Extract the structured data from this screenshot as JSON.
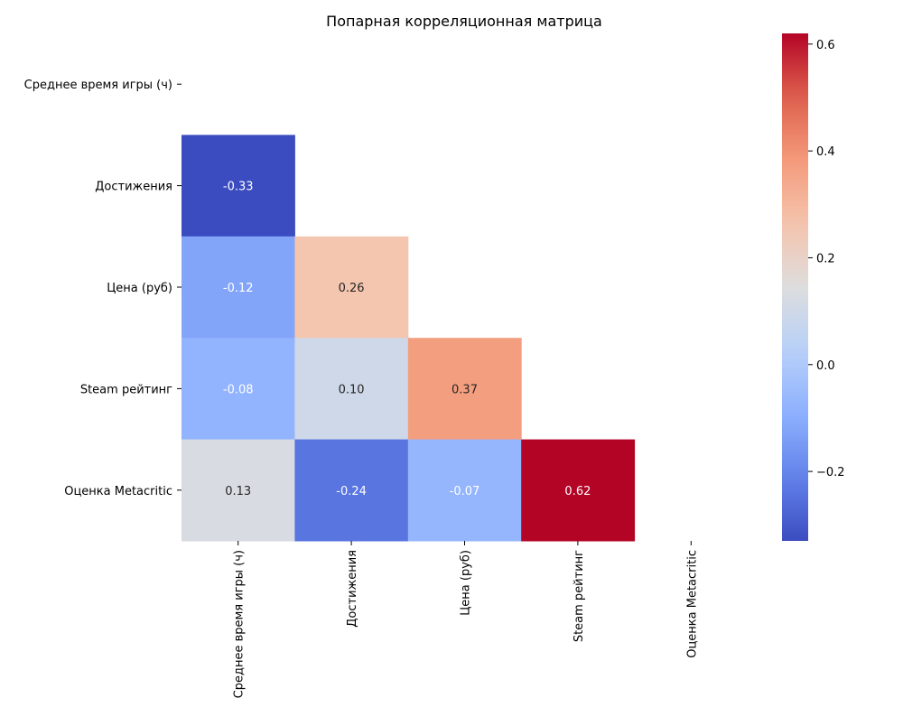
{
  "chart_data": {
    "type": "heatmap",
    "title": "Попарная корреляционная матрица",
    "row_labels": [
      "Среднее время игры (ч)",
      "Достижения",
      "Цена (руб)",
      "Steam рейтинг",
      "Оценка Metacritic"
    ],
    "col_labels": [
      "Среднее время игры (ч)",
      "Достижения",
      "Цена (руб)",
      "Steam рейтинг",
      "Оценка Metacritic"
    ],
    "mask": "upper-triangle including diagonal",
    "cells": [
      {
        "row": 1,
        "col": 0,
        "value": -0.33,
        "label": "-0.33"
      },
      {
        "row": 2,
        "col": 0,
        "value": -0.12,
        "label": "-0.12"
      },
      {
        "row": 2,
        "col": 1,
        "value": 0.26,
        "label": "0.26"
      },
      {
        "row": 3,
        "col": 0,
        "value": -0.08,
        "label": "-0.08"
      },
      {
        "row": 3,
        "col": 1,
        "value": 0.1,
        "label": "0.10"
      },
      {
        "row": 3,
        "col": 2,
        "value": 0.37,
        "label": "0.37"
      },
      {
        "row": 4,
        "col": 0,
        "value": 0.13,
        "label": "0.13"
      },
      {
        "row": 4,
        "col": 1,
        "value": -0.24,
        "label": "-0.24"
      },
      {
        "row": 4,
        "col": 2,
        "value": -0.07,
        "label": "-0.07"
      },
      {
        "row": 4,
        "col": 3,
        "value": 0.62,
        "label": "0.62"
      }
    ],
    "colormap": "coolwarm",
    "vmin": -0.33,
    "vmax": 0.62,
    "colorbar_ticks": [
      {
        "value": -0.2,
        "label": "−0.2"
      },
      {
        "value": 0.0,
        "label": "0.0"
      },
      {
        "value": 0.2,
        "label": "0.2"
      },
      {
        "value": 0.4,
        "label": "0.4"
      },
      {
        "value": 0.6,
        "label": "0.6"
      }
    ],
    "colorbar_placement": "right",
    "grid": false
  }
}
